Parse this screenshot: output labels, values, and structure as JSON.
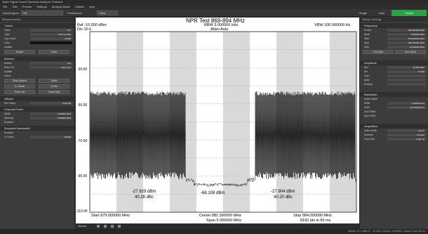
{
  "window": {
    "title": "Spike Signal Hound Spectrum Analyzer Software"
  },
  "menu": [
    "File",
    "Edit",
    "Presets",
    "Settings",
    "Analysis Mode",
    "Utilities",
    "Help"
  ],
  "toolbar": {
    "spectrogram_label": "Spectrogram",
    "spectrogram_value": "Off",
    "persistence": "Persistence",
    "clear": "Clear",
    "single": "Single",
    "auto": "Auto",
    "preset": "Preset"
  },
  "left_panel": {
    "header": "Measurements",
    "trace": {
      "title": "Traces",
      "rows": [
        {
          "label": "Trace",
          "value": "One"
        },
        {
          "label": "Type",
          "value": "Clear & Write"
        },
        {
          "label": "Avg Count",
          "value": "10.000"
        },
        {
          "label": "Color",
          "value": ""
        },
        {
          "label": "Update",
          "value": ""
        }
      ],
      "export": "Export",
      "clear": "Clear"
    },
    "markers": {
      "title": "Markers",
      "rows": [
        {
          "label": "Marker",
          "value": "One"
        },
        {
          "label": "Place On",
          "value": "Trace One"
        },
        {
          "label": "Update",
          "value": ""
        },
        {
          "label": "Active",
          "value": ""
        }
      ],
      "buttons": [
        "Peak Search",
        "Delta",
        "To Center",
        "To Ref",
        "Peak Left",
        "Peak Right"
      ]
    },
    "offsets": {
      "title": "Offsets",
      "rows": [
        {
          "label": "Ref Offset",
          "value": "0.000 dB"
        }
      ]
    },
    "channel_power": {
      "title": "Channel Power",
      "rows": [
        {
          "label": "Width",
          "value": "1.200000 MHz"
        },
        {
          "label": "Spacing",
          "value": "1.500000 MHz"
        },
        {
          "label": "Enabled",
          "value": ""
        }
      ]
    },
    "occupied_bw": {
      "title": "Occupied Bandwidth",
      "rows": [
        {
          "label": "Enabled",
          "value": ""
        },
        {
          "label": "% Power",
          "value": "99.000"
        }
      ]
    }
  },
  "chart": {
    "title": "NPR Test 869-894 MHz",
    "ref": "Ref -10.000 dBm",
    "div": "Div 10.0",
    "rbw": "RBW 3.000000 kHz",
    "atten": "Atten Auto",
    "vbw": "VBW 100.000000 Hz",
    "yticks": [
      "-30.00",
      "-50.00",
      "-70.00",
      "-90.00",
      "-110.00"
    ],
    "start": "Start 879.000000 MHz",
    "center": "Center 881.500000 MHz",
    "span": "Span 5.000000 MHz",
    "stop": "Stop 884.000000 MHz",
    "pts": "8192 pts in 80 ms",
    "left_meas": {
      "power": "-27.829 dBm",
      "ratio": "40.28 dBc"
    },
    "center_meas": "-68.108 dBm",
    "right_meas": {
      "power": "-27.904 dBm",
      "ratio": "40.20 dBc"
    }
  },
  "right_panel": {
    "header": "Sweep Settings",
    "frequency": {
      "title": "Frequency",
      "rows": [
        {
          "label": "Center",
          "value": "881.500000 MHz"
        },
        {
          "label": "Span",
          "value": "5.000000 MHz"
        },
        {
          "label": "Start",
          "value": "879.000000 MHz"
        },
        {
          "label": "Stop",
          "value": "884.000000 MHz"
        },
        {
          "label": "Step",
          "value": "20.000000 MHz"
        }
      ],
      "full_span": "Full Span",
      "zero_span": "Zero Span"
    },
    "amplitude": {
      "title": "Amplitude",
      "rows": [
        {
          "label": "Ref",
          "value": "-10.000 dBm"
        },
        {
          "label": "Div",
          "value": "10.000"
        },
        {
          "label": "Gain",
          "value": ""
        },
        {
          "label": "Atten",
          "value": ""
        },
        {
          "label": "Preamp",
          "value": ""
        }
      ]
    },
    "bandwidth": {
      "title": "Bandwidth",
      "rows": [
        {
          "label": "Native RBW",
          "value": ""
        },
        {
          "label": "RBW",
          "value": "3.000000 kHz"
        },
        {
          "label": "VBW",
          "value": "100.000000 Hz"
        },
        {
          "label": "Auto RBW",
          "value": ""
        },
        {
          "label": "Auto VBW",
          "value": ""
        }
      ]
    },
    "acquisition": {
      "title": "Acquisition",
      "rows": [
        {
          "label": "Video Units",
          "value": "Power"
        },
        {
          "label": "Detector",
          "value": "Average"
        },
        {
          "label": "Swp Time",
          "value": "1.000 ms"
        }
      ]
    }
  },
  "bottom": {
    "label": "Marker"
  },
  "status": "Metrics: 97.4 dBm IF · 40 MHz  |  Device: 1000026  |  Sweep Time: 80 ms"
}
